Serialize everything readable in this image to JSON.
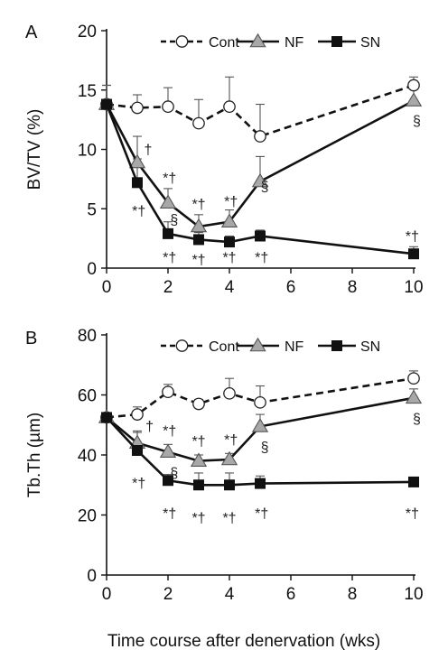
{
  "figure": {
    "xlabel": "Time course after denervation (wks)"
  },
  "chart_data": [
    {
      "type": "line",
      "panel_label": "A",
      "ylabel": "BV/TV (%)",
      "xlim": [
        0,
        10
      ],
      "ylim": [
        0,
        20
      ],
      "x_ticks": [
        0,
        2,
        4,
        6,
        8,
        10
      ],
      "y_ticks": [
        0,
        5,
        10,
        15,
        20
      ],
      "grid": false,
      "legend_position": "top",
      "series": [
        {
          "name": "Cont",
          "style": "dashed",
          "marker": "circle",
          "marker_color": "#ffffff",
          "x": [
            0,
            1,
            2,
            3,
            4,
            5,
            10
          ],
          "y": [
            13.8,
            13.5,
            13.6,
            12.2,
            13.6,
            11.1,
            15.4
          ],
          "err": [
            1.6,
            1.1,
            1.6,
            2.0,
            2.5,
            2.7,
            0.7
          ]
        },
        {
          "name": "NF",
          "style": "solid",
          "marker": "triangle",
          "marker_color": "#a8a8a8",
          "x": [
            0,
            1,
            2,
            3,
            4,
            5,
            10
          ],
          "y": [
            13.8,
            8.9,
            5.5,
            3.5,
            3.9,
            7.3,
            14.1
          ],
          "err": [
            1.6,
            2.2,
            1.2,
            1.0,
            1.0,
            2.1,
            1.2
          ]
        },
        {
          "name": "SN",
          "style": "solid",
          "marker": "square",
          "marker_color": "#111111",
          "x": [
            0,
            1,
            2,
            3,
            4,
            5,
            10
          ],
          "y": [
            13.8,
            7.2,
            2.9,
            2.4,
            2.2,
            2.7,
            1.2
          ],
          "err": [
            1.6,
            2.0,
            1.0,
            0.6,
            0.5,
            0.5,
            0.6
          ]
        }
      ],
      "annotations": [
        {
          "text": "†",
          "x": 1.35,
          "y": 9.6
        },
        {
          "text": "*†",
          "x": 2.05,
          "y": 7.2
        },
        {
          "text": "*†",
          "x": 3.0,
          "y": 5.0
        },
        {
          "text": "*†",
          "x": 4.05,
          "y": 5.2
        },
        {
          "text": "*†",
          "x": 1.05,
          "y": 4.4
        },
        {
          "text": "§",
          "x": 2.2,
          "y": 3.7
        },
        {
          "text": "§",
          "x": 5.15,
          "y": 6.5
        },
        {
          "text": "§",
          "x": 10.1,
          "y": 12.0
        },
        {
          "text": "*†",
          "x": 2.05,
          "y": 0.5
        },
        {
          "text": "*†",
          "x": 3.0,
          "y": 0.3
        },
        {
          "text": "*†",
          "x": 4.0,
          "y": 0.5
        },
        {
          "text": "*†",
          "x": 5.05,
          "y": 0.5
        },
        {
          "text": "*†",
          "x": 9.95,
          "y": 2.3
        }
      ]
    },
    {
      "type": "line",
      "panel_label": "B",
      "ylabel": "Tb.Th (µm)",
      "xlim": [
        0,
        10
      ],
      "ylim": [
        0,
        80
      ],
      "x_ticks": [
        0,
        2,
        4,
        6,
        8,
        10
      ],
      "y_ticks": [
        0,
        20,
        40,
        60,
        80
      ],
      "grid": false,
      "legend_position": "top",
      "series": [
        {
          "name": "Cont",
          "style": "dashed",
          "marker": "circle",
          "marker_color": "#ffffff",
          "x": [
            0,
            1,
            2,
            3,
            4,
            5,
            10
          ],
          "y": [
            52.5,
            53.5,
            61.0,
            57.0,
            60.5,
            57.5,
            65.5
          ],
          "err": [
            1.5,
            2.5,
            2.5,
            1.5,
            5.0,
            5.5,
            2.5
          ]
        },
        {
          "name": "NF",
          "style": "solid",
          "marker": "triangle",
          "marker_color": "#a8a8a8",
          "x": [
            0,
            1,
            2,
            3,
            4,
            5,
            10
          ],
          "y": [
            52.5,
            44.0,
            41.0,
            38.0,
            38.5,
            49.5,
            59.0
          ],
          "err": [
            1.5,
            4.0,
            2.5,
            2.0,
            2.0,
            4.0,
            3.0
          ]
        },
        {
          "name": "SN",
          "style": "solid",
          "marker": "square",
          "marker_color": "#111111",
          "x": [
            0,
            1,
            2,
            3,
            4,
            5,
            10
          ],
          "y": [
            52.5,
            41.5,
            31.5,
            30.0,
            30.0,
            30.5,
            31.0
          ],
          "err": [
            1.5,
            6.0,
            2.0,
            4.0,
            4.0,
            2.5,
            1.5
          ]
        }
      ],
      "annotations": [
        {
          "text": "†",
          "x": 1.4,
          "y": 48.0
        },
        {
          "text": "*†",
          "x": 2.05,
          "y": 46.5
        },
        {
          "text": "*†",
          "x": 3.0,
          "y": 43.0
        },
        {
          "text": "*†",
          "x": 4.05,
          "y": 43.5
        },
        {
          "text": "*†",
          "x": 1.05,
          "y": 29.0
        },
        {
          "text": "§",
          "x": 2.2,
          "y": 32.5
        },
        {
          "text": "§",
          "x": 5.15,
          "y": 41.0
        },
        {
          "text": "§",
          "x": 10.1,
          "y": 50.5
        },
        {
          "text": "*†",
          "x": 2.05,
          "y": 19.0
        },
        {
          "text": "*†",
          "x": 3.0,
          "y": 17.5
        },
        {
          "text": "*†",
          "x": 4.0,
          "y": 17.5
        },
        {
          "text": "*†",
          "x": 5.05,
          "y": 19.0
        },
        {
          "text": "*†",
          "x": 9.95,
          "y": 19.0
        }
      ]
    }
  ]
}
